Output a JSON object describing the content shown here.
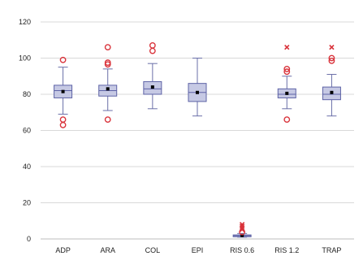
{
  "chart_data": {
    "type": "box",
    "title": "",
    "xlabel": "",
    "ylabel": "",
    "ylim": [
      0,
      120
    ],
    "yticks": [
      0,
      20,
      40,
      60,
      80,
      100,
      120
    ],
    "grid": "horizontal",
    "legend": "none",
    "colors": {
      "box_fill": "#c6c9e4",
      "box_stroke": "#5e63a6",
      "whisker": "#6a6fa8",
      "mean": "#000000",
      "outlier": "#d9333b",
      "grid": "#d9d9d9",
      "axis": "#bdbdbd"
    },
    "categories": [
      "ADP",
      "ARA",
      "COL",
      "EPI",
      "RIS 0.6",
      "RIS 1.2",
      "TRAP"
    ],
    "boxes": [
      {
        "category": "ADP",
        "whisker_low": 69,
        "q1": 78,
        "median": 82,
        "q3": 85,
        "whisker_high": 95,
        "mean": 81.5,
        "outliers_circle": [
          99,
          66,
          63
        ],
        "outliers_cross": []
      },
      {
        "category": "ARA",
        "whisker_low": 71,
        "q1": 79,
        "median": 82,
        "q3": 85,
        "whisker_high": 94,
        "mean": 83,
        "outliers_circle": [
          106,
          97.5,
          96.5,
          66
        ],
        "outliers_cross": []
      },
      {
        "category": "COL",
        "whisker_low": 72,
        "q1": 80,
        "median": 83,
        "q3": 87,
        "whisker_high": 97,
        "mean": 84,
        "outliers_circle": [
          107,
          104
        ],
        "outliers_cross": []
      },
      {
        "category": "EPI",
        "whisker_low": 68,
        "q1": 76,
        "median": 81,
        "q3": 86,
        "whisker_high": 100,
        "mean": 81,
        "outliers_circle": [],
        "outliers_cross": []
      },
      {
        "category": "RIS 0.6",
        "whisker_low": 1,
        "q1": 1.2,
        "median": 1.8,
        "q3": 2.2,
        "whisker_high": 3,
        "mean": 1.9,
        "outliers_circle": [
          3.8
        ],
        "outliers_cross": [
          8,
          7,
          6,
          5.2
        ]
      },
      {
        "category": "RIS 1.2",
        "whisker_low": 72,
        "q1": 78,
        "median": 80,
        "q3": 83,
        "whisker_high": 90,
        "mean": 80.5,
        "outliers_circle": [
          94,
          92.5,
          66
        ],
        "outliers_cross": [
          106
        ]
      },
      {
        "category": "TRAP",
        "whisker_low": 68,
        "q1": 77,
        "median": 80,
        "q3": 84,
        "whisker_high": 91,
        "mean": 81,
        "outliers_circle": [
          100,
          98.5
        ],
        "outliers_cross": [
          106
        ]
      }
    ]
  }
}
